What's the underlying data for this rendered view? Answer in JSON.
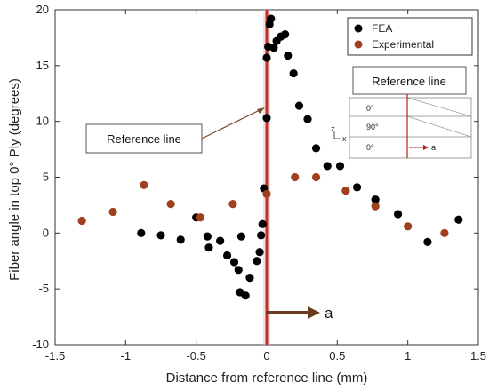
{
  "chart_data": {
    "type": "scatter",
    "xlabel": "Distance from reference line (mm)",
    "ylabel": "Fiber angle in top 0° Ply (degrees)",
    "xlim": [
      -1.5,
      1.5
    ],
    "ylim": [
      -10,
      20
    ],
    "xticks": [
      "-1.5",
      "-1",
      "-0.5",
      "0",
      "0.5",
      "1",
      "1.5"
    ],
    "yticks": [
      "-10",
      "-5",
      "0",
      "5",
      "10",
      "15",
      "20"
    ],
    "legend_position": "top-right",
    "series": [
      {
        "name": "FEA",
        "color": "#000000",
        "points": [
          [
            -0.89,
            0.0
          ],
          [
            -0.75,
            -0.2
          ],
          [
            -0.61,
            -0.6
          ],
          [
            -0.5,
            1.4
          ],
          [
            -0.42,
            -0.3
          ],
          [
            -0.41,
            -1.3
          ],
          [
            -0.33,
            -0.7
          ],
          [
            -0.28,
            -2.0
          ],
          [
            -0.23,
            -2.6
          ],
          [
            -0.2,
            -3.3
          ],
          [
            -0.18,
            -0.3
          ],
          [
            -0.12,
            -4.0
          ],
          [
            -0.19,
            -5.3
          ],
          [
            -0.15,
            -5.6
          ],
          [
            -0.07,
            -2.5
          ],
          [
            -0.05,
            -1.7
          ],
          [
            -0.04,
            -0.2
          ],
          [
            -0.03,
            0.8
          ],
          [
            -0.02,
            4.0
          ],
          [
            0.0,
            10.3
          ],
          [
            0.0,
            15.7
          ],
          [
            0.01,
            16.7
          ],
          [
            0.02,
            18.7
          ],
          [
            0.03,
            19.2
          ],
          [
            0.05,
            16.6
          ],
          [
            0.07,
            17.2
          ],
          [
            0.1,
            17.6
          ],
          [
            0.13,
            17.8
          ],
          [
            0.15,
            15.9
          ],
          [
            0.19,
            14.3
          ],
          [
            0.23,
            11.4
          ],
          [
            0.29,
            10.2
          ],
          [
            0.35,
            7.6
          ],
          [
            0.43,
            6.0
          ],
          [
            0.52,
            6.0
          ],
          [
            0.64,
            4.1
          ],
          [
            0.77,
            3.0
          ],
          [
            0.93,
            1.7
          ],
          [
            1.14,
            -0.8
          ],
          [
            1.36,
            1.2
          ]
        ]
      },
      {
        "name": "Experimental",
        "color": "#a0401e",
        "points": [
          [
            -1.31,
            1.1
          ],
          [
            -1.09,
            1.9
          ],
          [
            -0.87,
            4.3
          ],
          [
            -0.68,
            2.6
          ],
          [
            -0.47,
            1.4
          ],
          [
            -0.24,
            2.6
          ],
          [
            0.0,
            3.5
          ],
          [
            0.2,
            5.0
          ],
          [
            0.35,
            5.0
          ],
          [
            0.56,
            3.8
          ],
          [
            0.77,
            2.4
          ],
          [
            1.0,
            0.6
          ],
          [
            1.26,
            0.0
          ]
        ]
      }
    ],
    "reference_line_x": 0,
    "annotations": {
      "left_box": "Reference line",
      "inset_title": "Reference line",
      "inset_plies": [
        "0°",
        "90°",
        "0°"
      ],
      "inset_axis_z": "z",
      "inset_axis_x": "x",
      "inset_arrow_label": "a",
      "a_label": "a"
    }
  }
}
